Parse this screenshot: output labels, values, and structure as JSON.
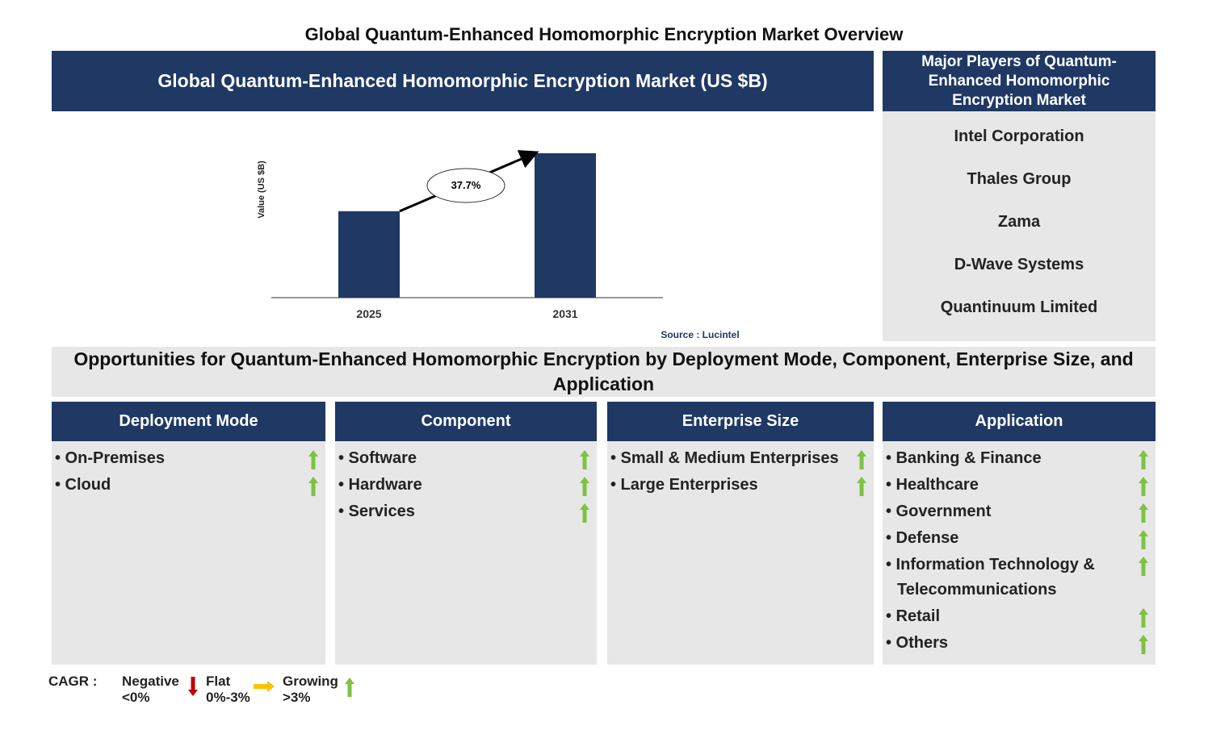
{
  "title": "Global Quantum-Enhanced Homomorphic Encryption Market Overview",
  "chart_panel": {
    "heading": "Global Quantum-Enhanced Homomorphic Encryption Market (US $B)",
    "chart_data": {
      "type": "bar",
      "y_label": "Value (US $B)",
      "categories": [
        "2025",
        "2031"
      ],
      "values": [
        1.0,
        1.67
      ],
      "color": "#1f3864",
      "annotation": "37.7%"
    },
    "source": "Source : Lucintel"
  },
  "players": {
    "heading": "Major Players of Quantum-Enhanced Homomorphic Encryption Market",
    "items": [
      "Intel Corporation",
      "Thales Group",
      "Zama",
      "D-Wave Systems",
      "Quantinuum Limited"
    ]
  },
  "opportunities": {
    "heading": "Opportunities for Quantum-Enhanced Homomorphic Encryption by Deployment Mode, Component, Enterprise Size, and Application",
    "columns": [
      {
        "heading": "Deployment Mode",
        "items": [
          "On-Premises",
          "Cloud"
        ]
      },
      {
        "heading": "Component",
        "items": [
          "Software",
          "Hardware",
          "Services"
        ]
      },
      {
        "heading": "Enterprise Size",
        "items": [
          "Small & Medium Enterprises",
          "Large Enterprises"
        ]
      },
      {
        "heading": "Application",
        "items": [
          "Banking & Finance",
          "Healthcare",
          "Government",
          "Defense",
          "Information Technology & Telecommunications",
          "Retail",
          "Others"
        ]
      }
    ]
  },
  "legend": {
    "label": "CAGR :",
    "items": [
      {
        "name": "Negative",
        "range": "<0%"
      },
      {
        "name": "Flat",
        "range": "0%-3%"
      },
      {
        "name": "Growing",
        "range": ">3%"
      }
    ]
  }
}
